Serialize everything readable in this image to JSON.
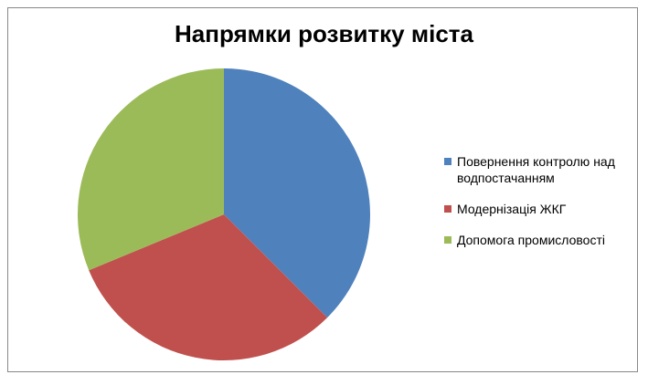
{
  "chart_data": {
    "type": "pie",
    "title": "Напрямки розвитку міста",
    "categories": [
      "Повернення контролю над водпостачанням",
      "Модернізація ЖКГ",
      "Допомога промисловості"
    ],
    "values": [
      37.5,
      31.25,
      31.25
    ],
    "colors": [
      "#4f81bd",
      "#c0504d",
      "#9bbb59"
    ],
    "legend": "right"
  }
}
